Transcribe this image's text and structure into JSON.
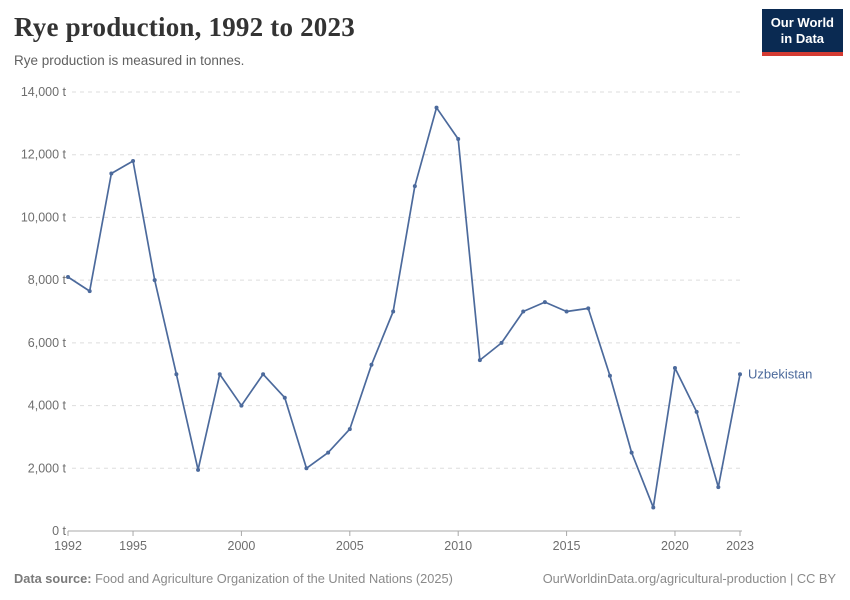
{
  "header": {
    "title": "Rye production, 1992 to 2023",
    "subtitle": "Rye production is measured in tonnes.",
    "logo_line1": "Our World",
    "logo_line2": "in Data"
  },
  "colors": {
    "line": "#4C6A9C",
    "gridline": "#dddddd",
    "axis": "#a8a8a8",
    "tick_label": "#6e6e6e",
    "logo_bg": "#0a2a52",
    "logo_accent": "#d43b32"
  },
  "chart_data": {
    "type": "line",
    "title": "Rye production, 1992 to 2023",
    "unit": "tonnes",
    "xlabel": "",
    "ylabel": "",
    "ylim": [
      0,
      14000
    ],
    "grid": "horizontal-dashed",
    "legend": "end-of-line-label",
    "x": [
      1992,
      1993,
      1994,
      1995,
      1996,
      1997,
      1998,
      1999,
      2000,
      2001,
      2002,
      2003,
      2004,
      2005,
      2006,
      2007,
      2008,
      2009,
      2010,
      2011,
      2012,
      2013,
      2014,
      2015,
      2016,
      2017,
      2018,
      2019,
      2020,
      2021,
      2022,
      2023
    ],
    "series": [
      {
        "name": "Uzbekistan",
        "color": "#4C6A9C",
        "values": [
          8100,
          7650,
          11400,
          11800,
          8000,
          5000,
          1950,
          5000,
          4000,
          5000,
          4250,
          2000,
          2500,
          3250,
          5300,
          7000,
          11000,
          13500,
          12500,
          5450,
          6000,
          7000,
          7300,
          7000,
          7100,
          4950,
          2500,
          750,
          5200,
          3800,
          1400,
          5000
        ]
      }
    ],
    "yticks": [
      {
        "value": 0,
        "label": "0 t"
      },
      {
        "value": 2000,
        "label": "2,000 t"
      },
      {
        "value": 4000,
        "label": "4,000 t"
      },
      {
        "value": 6000,
        "label": "6,000 t"
      },
      {
        "value": 8000,
        "label": "8,000 t"
      },
      {
        "value": 10000,
        "label": "10,000 t"
      },
      {
        "value": 12000,
        "label": "12,000 t"
      },
      {
        "value": 14000,
        "label": "14,000 t"
      }
    ],
    "xticks": [
      {
        "value": 1992,
        "label": "1992"
      },
      {
        "value": 1995,
        "label": "1995"
      },
      {
        "value": 2000,
        "label": "2000"
      },
      {
        "value": 2005,
        "label": "2005"
      },
      {
        "value": 2010,
        "label": "2010"
      },
      {
        "value": 2015,
        "label": "2015"
      },
      {
        "value": 2020,
        "label": "2020"
      },
      {
        "value": 2023,
        "label": "2023"
      }
    ],
    "end_label": "Uzbekistan"
  },
  "footer": {
    "datasource_label": "Data source:",
    "datasource_value": "Food and Agriculture Organization of the United Nations (2025)",
    "credit": "OurWorldinData.org/agricultural-production | CC BY"
  }
}
